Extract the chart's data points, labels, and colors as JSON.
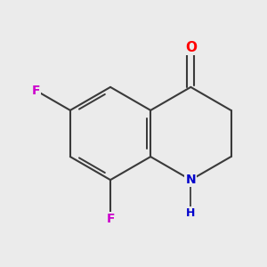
{
  "background_color": "#ebebeb",
  "bond_color": "#3a3a3a",
  "bond_width": 1.5,
  "atom_labels": {
    "O": {
      "color": "#ff0000",
      "fontsize": 11,
      "fontweight": "bold"
    },
    "N": {
      "color": "#0000cc",
      "fontsize": 10,
      "fontweight": "bold"
    },
    "H": {
      "color": "#0000cc",
      "fontsize": 9,
      "fontweight": "bold"
    },
    "F": {
      "color": "#cc00cc",
      "fontsize": 10,
      "fontweight": "bold"
    }
  },
  "figsize": [
    3.0,
    3.0
  ],
  "dpi": 100
}
